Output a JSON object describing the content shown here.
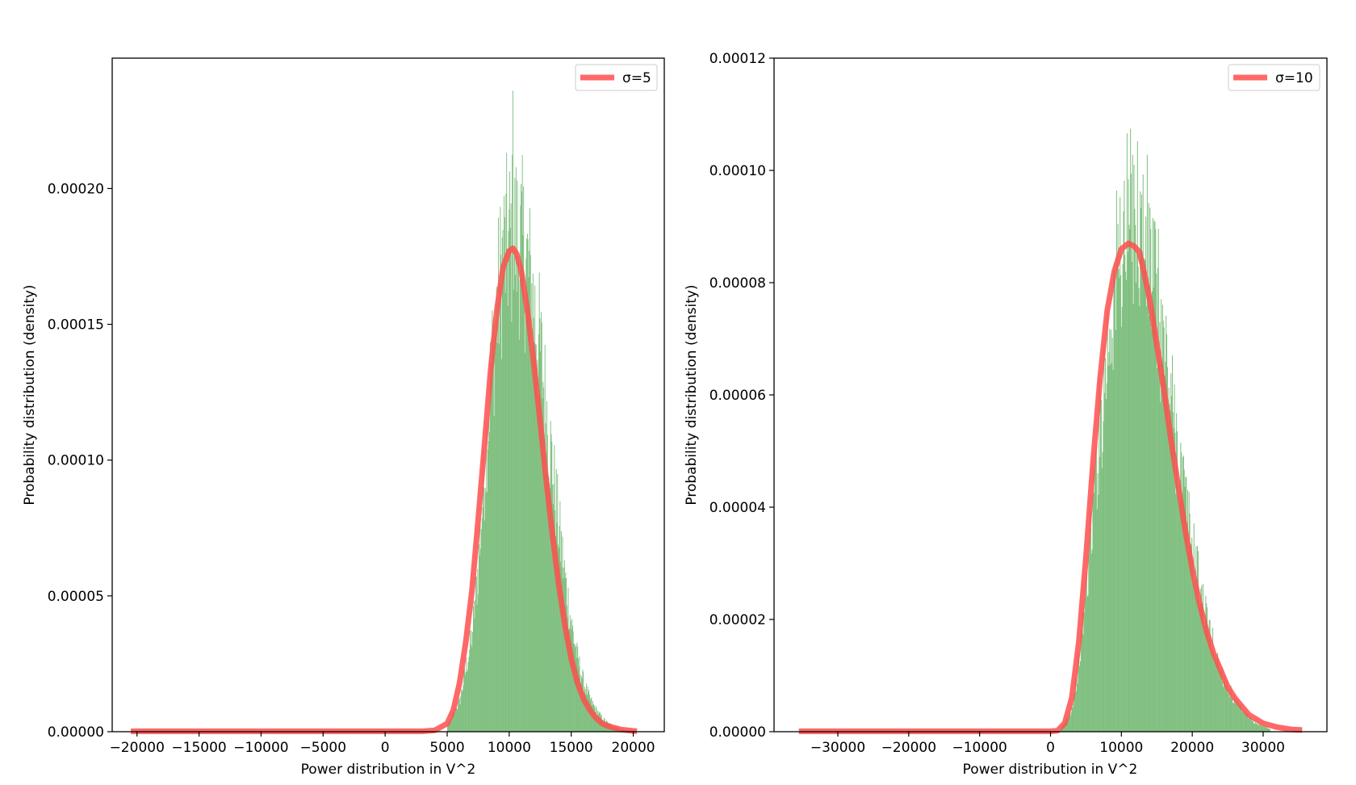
{
  "chart_data": [
    {
      "type": "histogram",
      "xlabel": "Power distribution in V^2",
      "ylabel": "Probability distribution (density)",
      "xlim": [
        -22000,
        22500
      ],
      "ylim": [
        0,
        0.000248
      ],
      "xticks": [
        -20000,
        -15000,
        -10000,
        -5000,
        0,
        5000,
        10000,
        15000,
        20000
      ],
      "xtick_labels": [
        "−20000",
        "−15000",
        "−10000",
        "−5000",
        "0",
        "5000",
        "10000",
        "15000",
        "20000"
      ],
      "yticks": [
        0,
        5e-05,
        0.0001,
        0.00015,
        0.0002
      ],
      "ytick_labels": [
        "0.00000",
        "0.00005",
        "0.00010",
        "0.00015",
        "0.00020"
      ],
      "legend_position": "top-right",
      "grid": false,
      "histogram": {
        "color": "#7fbf7f",
        "bin_edges_range": [
          5000,
          20200
        ],
        "bin_count": 300,
        "envelope_x": [
          5000,
          6000,
          7000,
          7500,
          8000,
          8500,
          9000,
          9500,
          10000,
          10500,
          11000,
          11500,
          12000,
          12500,
          13000,
          13500,
          14000,
          14500,
          15000,
          15500,
          16000,
          16500,
          17000,
          17500,
          18000,
          18500,
          19000,
          19500,
          20200
        ],
        "envelope_density": [
          2e-06,
          1.1e-05,
          3.5e-05,
          6e-05,
          9.5e-05,
          0.00013,
          0.000155,
          0.000175,
          0.00018,
          0.000182,
          0.000178,
          0.00017,
          0.000155,
          0.00014,
          0.000118,
          9.6e-05,
          7.5e-05,
          5.6e-05,
          4e-05,
          2.7e-05,
          1.8e-05,
          1.2e-05,
          8e-06,
          5e-06,
          3e-06,
          2e-06,
          1e-06,
          5e-07,
          2e-07
        ],
        "peak_x": 10300,
        "peak_density": 0.000236
      },
      "series": [
        {
          "name": "σ=5",
          "color": "#ff4d4d",
          "x": [
            -20500,
            -5000,
            0,
            3000,
            4000,
            5000,
            5500,
            6000,
            6500,
            7000,
            7500,
            8000,
            8500,
            9000,
            9500,
            10000,
            10300,
            10600,
            11000,
            11500,
            12000,
            12500,
            13000,
            13500,
            14000,
            14500,
            15000,
            15500,
            16000,
            16500,
            17000,
            17500,
            18000,
            19000,
            20000,
            20300
          ],
          "y": [
            0,
            0,
            0,
            0,
            5e-07,
            3e-06,
            8e-06,
            1.8e-05,
            3.3e-05,
            5.2e-05,
            7.8e-05,
            0.000105,
            0.000133,
            0.000155,
            0.000171,
            0.000177,
            0.000178,
            0.000176,
            0.000169,
            0.000154,
            0.000135,
            0.000114,
            9.2e-05,
            7.2e-05,
            5.4e-05,
            3.9e-05,
            2.7e-05,
            1.8e-05,
            1.2e-05,
            8e-06,
            5e-06,
            3e-06,
            2e-06,
            8e-07,
            3e-07,
            2e-07
          ]
        }
      ]
    },
    {
      "type": "histogram",
      "xlabel": "Power distribution in V^2",
      "ylabel": "Probability distribution (density)",
      "xlim": [
        -39000,
        39000
      ],
      "ylim": [
        0,
        0.00012
      ],
      "xticks": [
        -30000,
        -20000,
        -10000,
        0,
        10000,
        20000,
        30000
      ],
      "xtick_labels": [
        "−30000",
        "−20000",
        "−10000",
        "0",
        "10000",
        "20000",
        "30000"
      ],
      "yticks": [
        0,
        2e-05,
        4e-05,
        6e-05,
        8e-05,
        0.0001,
        0.00012
      ],
      "ytick_labels": [
        "0.00000",
        "0.00002",
        "0.00004",
        "0.00006",
        "0.00008",
        "0.00010",
        "0.00012"
      ],
      "legend_position": "top-right",
      "grid": false,
      "histogram": {
        "color": "#7fbf7f",
        "bin_edges_range": [
          1500,
          31000
        ],
        "bin_count": 300,
        "envelope_x": [
          1500,
          3000,
          4000,
          5000,
          6000,
          7000,
          8000,
          9000,
          10000,
          11000,
          12000,
          13000,
          14000,
          15000,
          16000,
          17000,
          18000,
          19000,
          20000,
          21000,
          22000,
          23000,
          24000,
          25000,
          26000,
          27000,
          28000,
          29000,
          30000,
          31000
        ],
        "envelope_density": [
          5e-07,
          4e-06,
          1.2e-05,
          2.5e-05,
          4e-05,
          5.5e-05,
          6.8e-05,
          7.9e-05,
          8.6e-05,
          9e-05,
          9.1e-05,
          8.9e-05,
          8.4e-05,
          7.7e-05,
          6.8e-05,
          5.9e-05,
          5e-05,
          4.1e-05,
          3.3e-05,
          2.6e-05,
          2e-05,
          1.5e-05,
          1.1e-05,
          8e-06,
          5.5e-06,
          3.8e-06,
          2.5e-06,
          1.5e-06,
          1e-06,
          5e-07
        ],
        "peak_x": 11800,
        "peak_density": 0.000101
      },
      "series": [
        {
          "name": "σ=10",
          "color": "#ff4d4d",
          "x": [
            -35500,
            -10000,
            0,
            1000,
            2000,
            3000,
            4000,
            5000,
            6000,
            7000,
            8000,
            9000,
            10000,
            11000,
            11800,
            12500,
            13000,
            14000,
            15000,
            16000,
            17000,
            18000,
            19000,
            20000,
            21000,
            22000,
            23000,
            24000,
            25000,
            26000,
            27000,
            28000,
            30000,
            32000,
            34000,
            35500
          ],
          "y": [
            0,
            0,
            0,
            2e-07,
            1.5e-06,
            6e-06,
            1.6e-05,
            3.1e-05,
            4.8e-05,
            6.3e-05,
            7.5e-05,
            8.2e-05,
            8.6e-05,
            8.7e-05,
            8.65e-05,
            8.55e-05,
            8.3e-05,
            7.7e-05,
            6.9e-05,
            6.1e-05,
            5.2e-05,
            4.4e-05,
            3.6e-05,
            2.9e-05,
            2.3e-05,
            1.8e-05,
            1.4e-05,
            1.1e-05,
            8e-06,
            6e-06,
            4.5e-06,
            3e-06,
            1.5e-06,
            8e-07,
            4e-07,
            3e-07
          ]
        }
      ]
    }
  ]
}
